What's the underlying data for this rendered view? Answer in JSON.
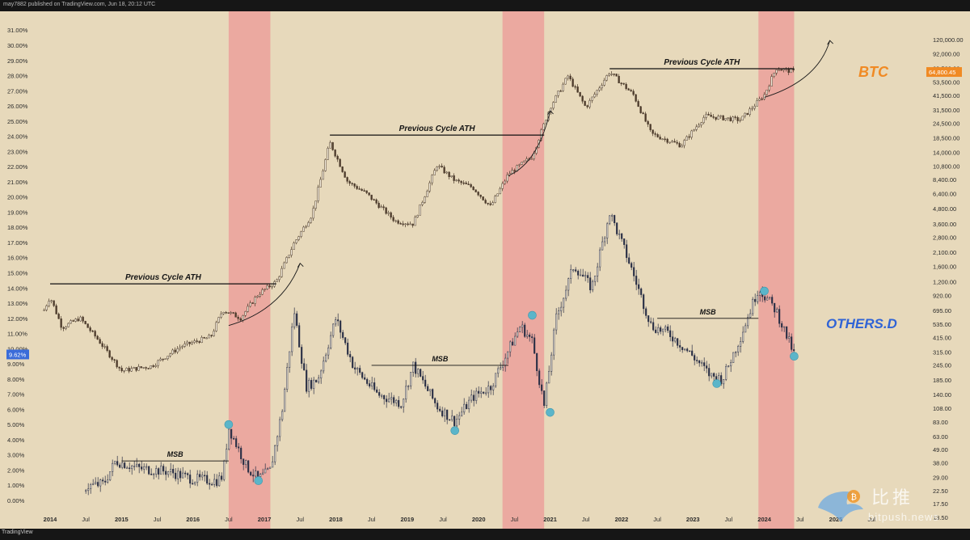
{
  "header": {
    "publisher_line": "may7882 published on TradingView.com, Jun 18, 20",
    "publisher_suffix": ":12 UTC"
  },
  "footer": {
    "brand": "TradingView"
  },
  "watermark": {
    "chinese": "比推",
    "latin": "bitpush.news"
  },
  "colors": {
    "background": "#e7d9bb",
    "halving_band": "#eba9a0",
    "candle": "#4b3a2b",
    "others_candle": "#2a2f46",
    "msb_marker": "#5bb5c9",
    "btc_label": "#f08a24",
    "others_label": "#2f63d6",
    "price_tag": "#f08a24",
    "pct_tag": "#3a6cd9"
  },
  "chart_data": {
    "type": "candlestick-overlay",
    "series": [
      {
        "name": "BTC",
        "axis": "right",
        "log_scale": true,
        "points": [
          [
            "2013-12",
            700
          ],
          [
            "2014-01",
            900
          ],
          [
            "2014-03",
            500
          ],
          [
            "2014-06",
            600
          ],
          [
            "2014-09",
            400
          ],
          [
            "2015-01",
            220
          ],
          [
            "2015-06",
            240
          ],
          [
            "2015-11",
            350
          ],
          [
            "2016-04",
            420
          ],
          [
            "2016-06",
            700
          ],
          [
            "2016-09",
            600
          ],
          [
            "2016-12",
            950
          ],
          [
            "2017-03",
            1200
          ],
          [
            "2017-06",
            2500
          ],
          [
            "2017-09",
            4300
          ],
          [
            "2017-12",
            17000
          ],
          [
            "2018-03",
            8000
          ],
          [
            "2018-06",
            6500
          ],
          [
            "2018-11",
            3800
          ],
          [
            "2019-02",
            3600
          ],
          [
            "2019-06",
            11000
          ],
          [
            "2019-09",
            8200
          ],
          [
            "2019-12",
            7200
          ],
          [
            "2020-03",
            5000
          ],
          [
            "2020-06",
            9300
          ],
          [
            "2020-10",
            13000
          ],
          [
            "2021-01",
            33000
          ],
          [
            "2021-04",
            60000
          ],
          [
            "2021-07",
            33000
          ],
          [
            "2021-11",
            65000
          ],
          [
            "2022-03",
            42000
          ],
          [
            "2022-06",
            20000
          ],
          [
            "2022-11",
            16000
          ],
          [
            "2023-03",
            28000
          ],
          [
            "2023-09",
            26000
          ],
          [
            "2024-01",
            42000
          ],
          [
            "2024-03",
            70000
          ],
          [
            "2024-06",
            64800
          ]
        ],
        "last_value_tag": "64,800.45"
      },
      {
        "name": "OTHERS.D",
        "axis": "left",
        "unit": "%",
        "points": [
          [
            "2014-07",
            0.9
          ],
          [
            "2014-10",
            1.1
          ],
          [
            "2014-12",
            2.6
          ],
          [
            "2015-04",
            2.1
          ],
          [
            "2015-09",
            1.9
          ],
          [
            "2016-01",
            1.4
          ],
          [
            "2016-05",
            1.3
          ],
          [
            "2016-06",
            1.6
          ],
          [
            "2016-07",
            4.8
          ],
          [
            "2016-10",
            2.2
          ],
          [
            "2016-12",
            1.4
          ],
          [
            "2017-02",
            2.0
          ],
          [
            "2017-04",
            6.0
          ],
          [
            "2017-06",
            12.5
          ],
          [
            "2017-08",
            7.5
          ],
          [
            "2017-10",
            8.0
          ],
          [
            "2018-01",
            12.0
          ],
          [
            "2018-04",
            8.8
          ],
          [
            "2018-08",
            7.0
          ],
          [
            "2018-12",
            6.4
          ],
          [
            "2019-02",
            8.9
          ],
          [
            "2019-06",
            6.2
          ],
          [
            "2019-09",
            5.2
          ],
          [
            "2019-12",
            6.8
          ],
          [
            "2020-03",
            7.5
          ],
          [
            "2020-08",
            11.5
          ],
          [
            "2020-10",
            10.5
          ],
          [
            "2020-12",
            6.2
          ],
          [
            "2021-02",
            12.0
          ],
          [
            "2021-05",
            15.5
          ],
          [
            "2021-08",
            14.0
          ],
          [
            "2021-11",
            19.0
          ],
          [
            "2022-02",
            16.0
          ],
          [
            "2022-06",
            11.5
          ],
          [
            "2022-09",
            11.0
          ],
          [
            "2023-01",
            9.5
          ],
          [
            "2023-04",
            8.2
          ],
          [
            "2023-06",
            8.0
          ],
          [
            "2023-09",
            10.8
          ],
          [
            "2023-12",
            14.0
          ],
          [
            "2024-03",
            12.5
          ],
          [
            "2024-06",
            9.62
          ]
        ],
        "last_value_tag": "9.62%"
      }
    ],
    "halving_bands": [
      {
        "from": "2016-07",
        "to": "2017-02"
      },
      {
        "from": "2020-05",
        "to": "2020-12"
      },
      {
        "from": "2023-12",
        "to": "2024-06"
      }
    ],
    "left_axis_ticks": [
      "31.00%",
      "30.00%",
      "29.00%",
      "28.00%",
      "27.00%",
      "26.00%",
      "25.00%",
      "24.00%",
      "23.00%",
      "22.00%",
      "21.00%",
      "20.00%",
      "19.00%",
      "18.00%",
      "17.00%",
      "16.00%",
      "15.00%",
      "14.00%",
      "13.00%",
      "12.00%",
      "11.00%",
      "10.00%",
      "9.00%",
      "8.00%",
      "7.00%",
      "6.00%",
      "5.00%",
      "4.00%",
      "3.00%",
      "2.00%",
      "1.00%",
      "0.00%"
    ],
    "right_axis_ticks": [
      "120,000.00",
      "92,000.00",
      "69,500.00",
      "53,500.00",
      "41,500.00",
      "31,500.00",
      "24,500.00",
      "18,500.00",
      "14,000.00",
      "10,800.00",
      "8,400.00",
      "6,400.00",
      "4,800.00",
      "3,600.00",
      "2,800.00",
      "2,100.00",
      "1,600.00",
      "1,200.00",
      "920.00",
      "695.00",
      "535.00",
      "415.00",
      "315.00",
      "245.00",
      "185.00",
      "140.00",
      "108.00",
      "83.00",
      "63.00",
      "49.00",
      "38.00",
      "29.00",
      "22.50",
      "17.50",
      "13.50"
    ],
    "x_ticks": [
      "2014",
      "Jul",
      "2015",
      "Jul",
      "2016",
      "Jul",
      "2017",
      "Jul",
      "2018",
      "Jul",
      "2019",
      "Jul",
      "2020",
      "Jul",
      "2021",
      "Jul",
      "2022",
      "Jul",
      "2023",
      "Jul",
      "2024",
      "Jul",
      "2025",
      "Jul"
    ],
    "annotations": [
      {
        "text": "Previous Cycle ATH",
        "series": "BTC",
        "from": "2014-01",
        "to": "2017-03",
        "value": 1150
      },
      {
        "text": "Previous Cycle ATH",
        "series": "BTC",
        "from": "2017-12",
        "to": "2020-12",
        "value": 19500
      },
      {
        "text": "Previous Cycle ATH",
        "series": "BTC",
        "from": "2021-11",
        "to": "2024-06",
        "value": 69000
      },
      {
        "text": "MSB",
        "series": "OTHERS.D",
        "from": "2015-01",
        "to": "2016-07",
        "value": 2.6
      },
      {
        "text": "MSB",
        "series": "OTHERS.D",
        "from": "2018-07",
        "to": "2020-06",
        "value": 8.9
      },
      {
        "text": "MSB",
        "series": "OTHERS.D",
        "from": "2022-07",
        "to": "2023-12",
        "value": 12.0
      }
    ],
    "markers": [
      {
        "series": "OTHERS.D",
        "date": "2016-07",
        "value": 5.0
      },
      {
        "series": "OTHERS.D",
        "date": "2016-12",
        "value": 1.3
      },
      {
        "series": "OTHERS.D",
        "date": "2019-09",
        "value": 4.6
      },
      {
        "series": "OTHERS.D",
        "date": "2020-10",
        "value": 12.2
      },
      {
        "series": "OTHERS.D",
        "date": "2021-01",
        "value": 5.8
      },
      {
        "series": "OTHERS.D",
        "date": "2023-05",
        "value": 7.7
      },
      {
        "series": "OTHERS.D",
        "date": "2024-01",
        "value": 13.8
      },
      {
        "series": "OTHERS.D",
        "date": "2024-06",
        "value": 9.5
      }
    ],
    "asset_labels": {
      "btc": "BTC",
      "others": "OTHERS.D"
    }
  }
}
